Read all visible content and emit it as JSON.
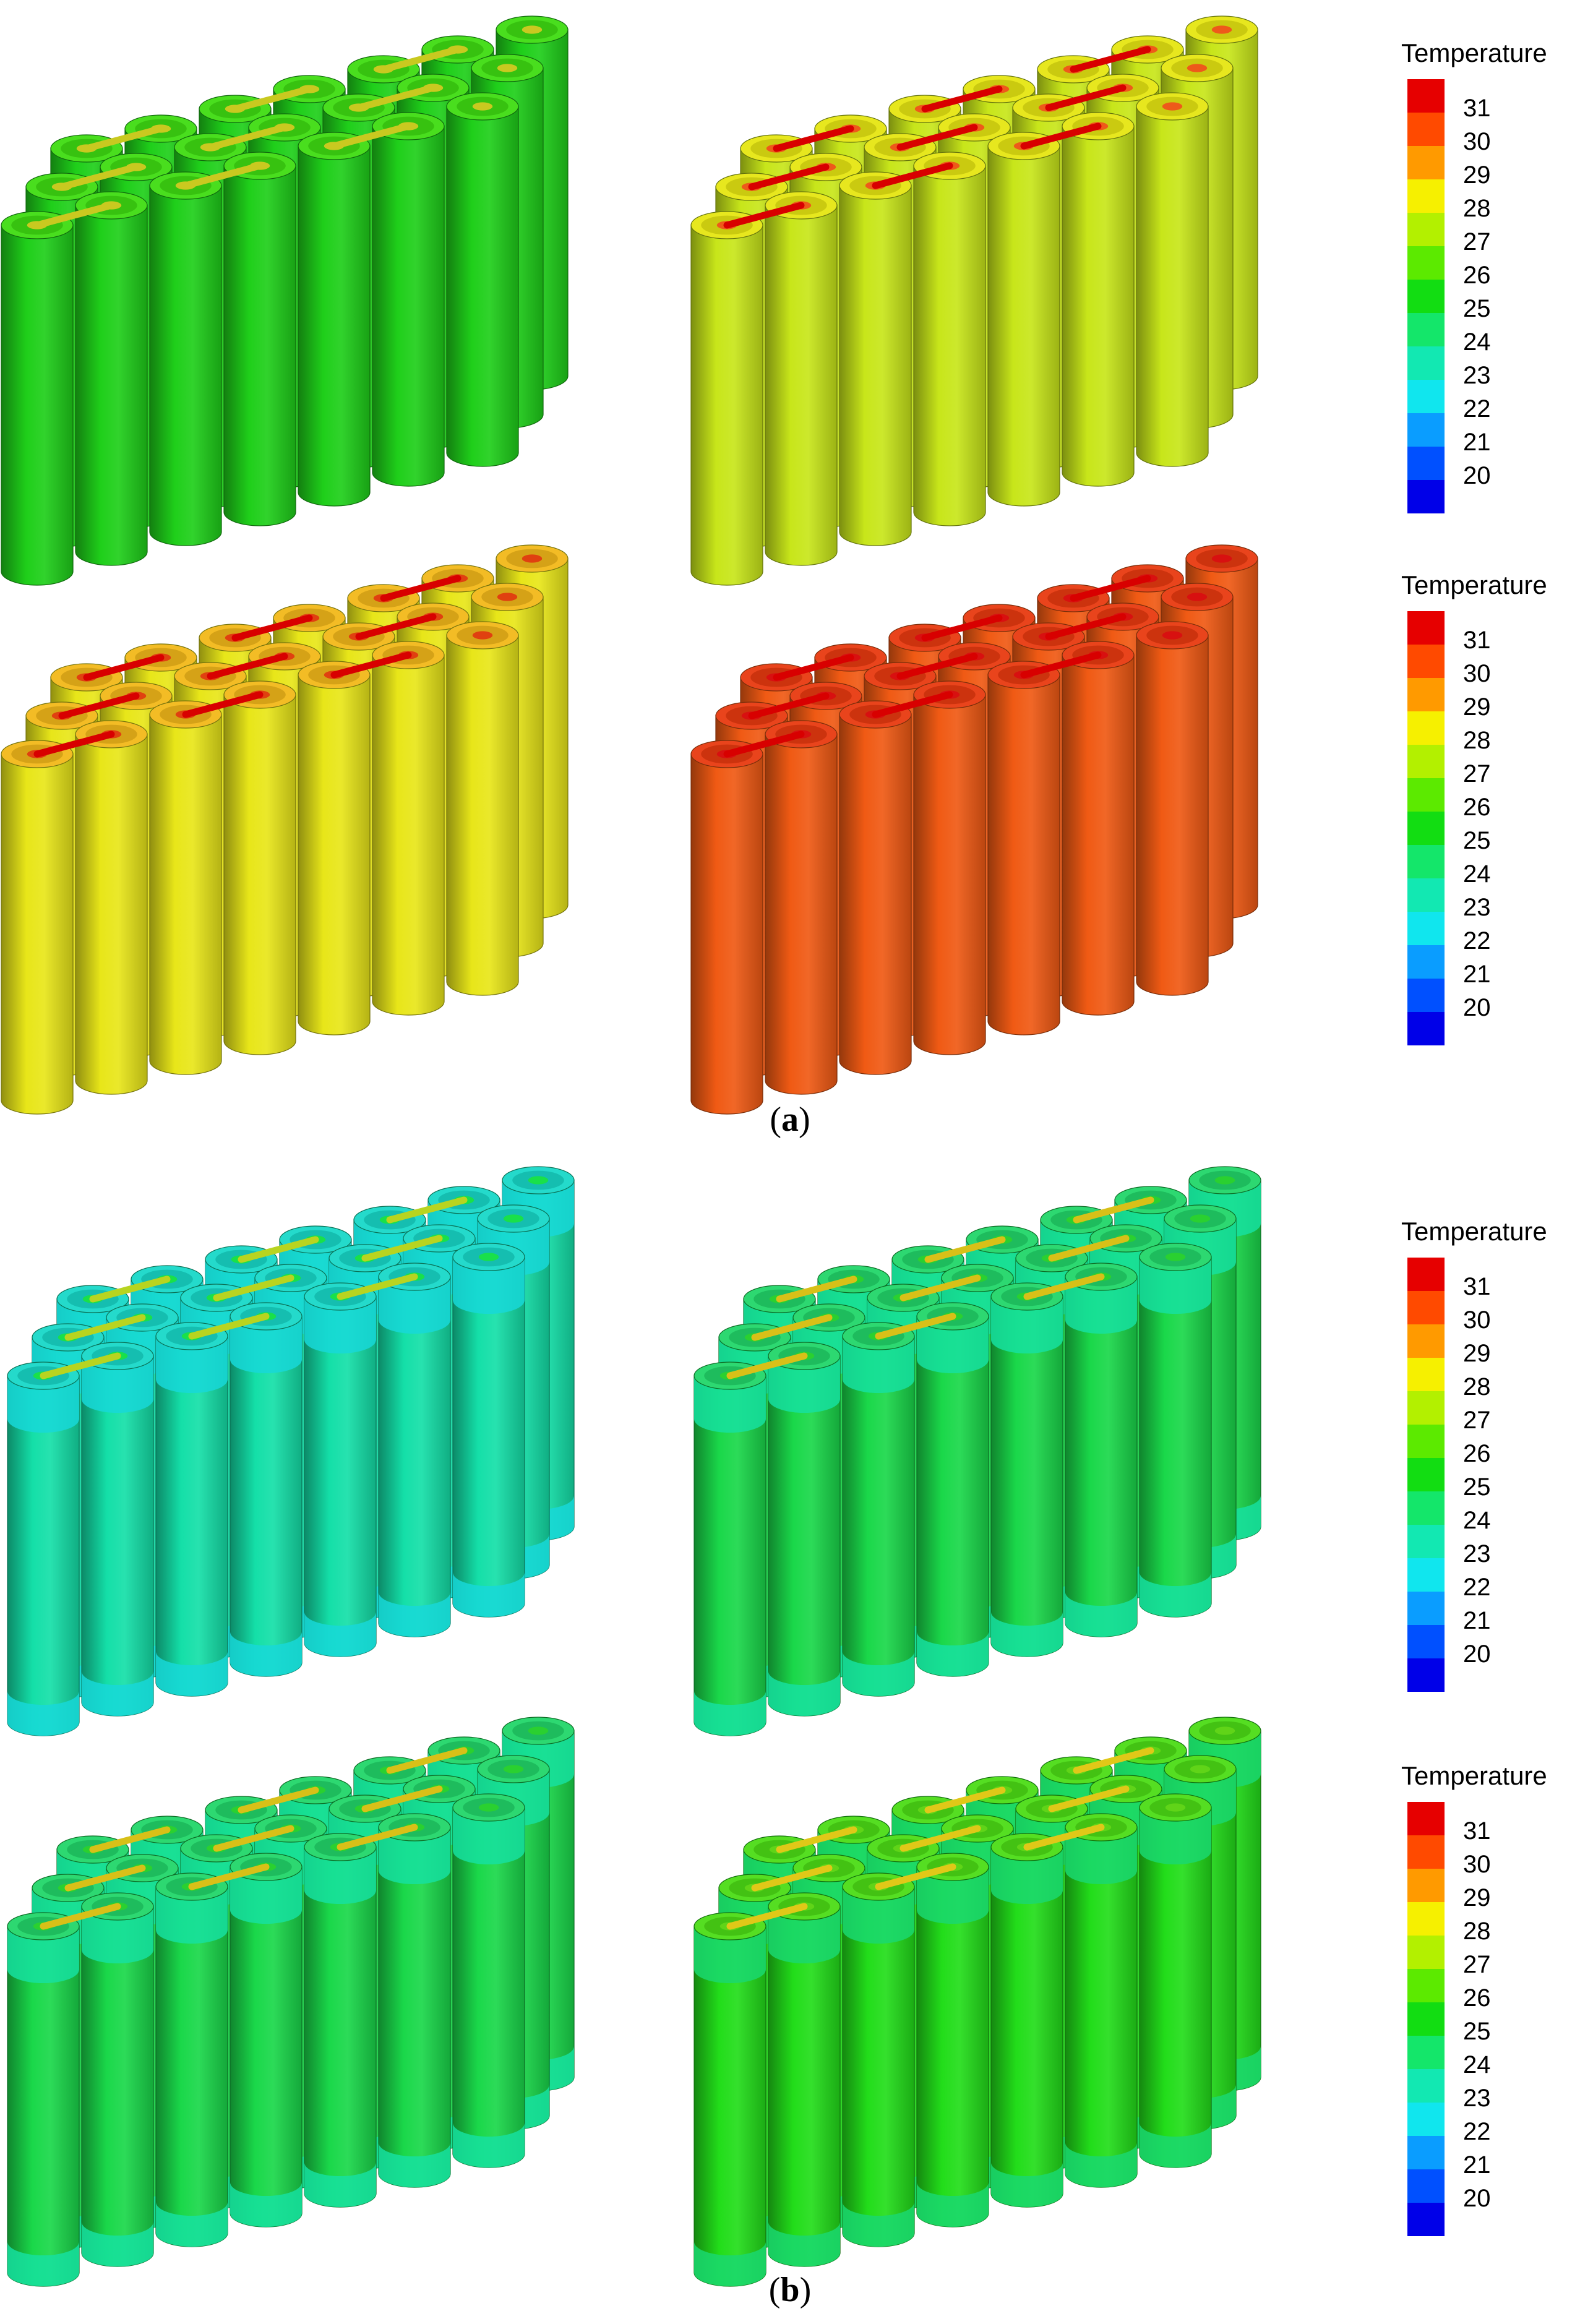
{
  "figure": {
    "caption_a": "a",
    "caption_b": "b"
  },
  "colorbar": {
    "title": "Temperature",
    "ticks": [
      "31",
      "30",
      "29",
      "28",
      "27",
      "26",
      "25",
      "24",
      "23",
      "22",
      "21",
      "20"
    ],
    "colors": [
      "#e60000",
      "#ff4a00",
      "#ff9a00",
      "#f6f000",
      "#b3f000",
      "#5cea00",
      "#12dd12",
      "#14e66a",
      "#12e8b2",
      "#10e6ee",
      "#0a9dff",
      "#0050ff",
      "#0000e8"
    ]
  },
  "panels": [
    {
      "id": "a1",
      "base": "#1fcf1a",
      "top": "#3fdc12",
      "band": null,
      "strap": "#c9c920",
      "tab": "#c9c920"
    },
    {
      "id": "a2",
      "base": "#c8e61a",
      "top": "#e6e612",
      "band": null,
      "strap": "#d80000",
      "tab": "#ee5a1a"
    },
    {
      "id": "a3",
      "base": "#e8e619",
      "top": "#f2b81a",
      "band": null,
      "strap": "#d80000",
      "tab": "#e04010"
    },
    {
      "id": "a4",
      "base": "#f05a14",
      "top": "#e83a10",
      "band": null,
      "strap": "#d80000",
      "tab": "#d81010"
    },
    {
      "id": "b1",
      "base": "#14dfa8",
      "top": "#18d8c8",
      "band": "#18d8d8",
      "strap": "#b8d420",
      "tab": "#19e04a"
    },
    {
      "id": "b2",
      "base": "#1ad84a",
      "top": "#22d66a",
      "band": "#16e0a0",
      "strap": "#d8c018",
      "tab": "#2ad030"
    },
    {
      "id": "b3",
      "base": "#1ad84a",
      "top": "#22d66a",
      "band": "#16e0a0",
      "strap": "#d8c018",
      "tab": "#2ad030"
    },
    {
      "id": "b4",
      "base": "#22dd1a",
      "top": "#4cdc16",
      "band": "#1ad870",
      "strap": "#e0c818",
      "tab": "#60d418"
    }
  ]
}
